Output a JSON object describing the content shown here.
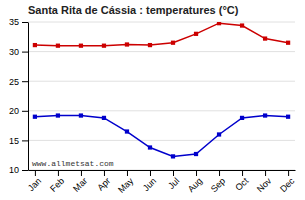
{
  "chart_data": {
    "type": "line",
    "title": "Santa Rita de Cássia : temperatures (°C)",
    "categories": [
      "Jan",
      "Feb",
      "Mar",
      "Apr",
      "May",
      "Jun",
      "Jul",
      "Aug",
      "Sep",
      "Oct",
      "Nov",
      "Dec"
    ],
    "series": [
      {
        "color": "#cc0000",
        "marker": "square",
        "values": [
          31.1,
          31.0,
          31.0,
          31.0,
          31.2,
          31.1,
          31.5,
          33.0,
          34.8,
          34.4,
          32.2,
          31.5
        ]
      },
      {
        "color": "#0000cc",
        "marker": "square",
        "values": [
          19.0,
          19.2,
          19.2,
          18.8,
          16.5,
          13.8,
          12.3,
          12.7,
          16.0,
          18.8,
          19.2,
          19.0
        ]
      }
    ],
    "ylim": [
      10,
      35
    ],
    "yticks": [
      10,
      15,
      20,
      25,
      30,
      35
    ],
    "grid": true,
    "annotations": [
      "www.allmetsat.com"
    ]
  }
}
